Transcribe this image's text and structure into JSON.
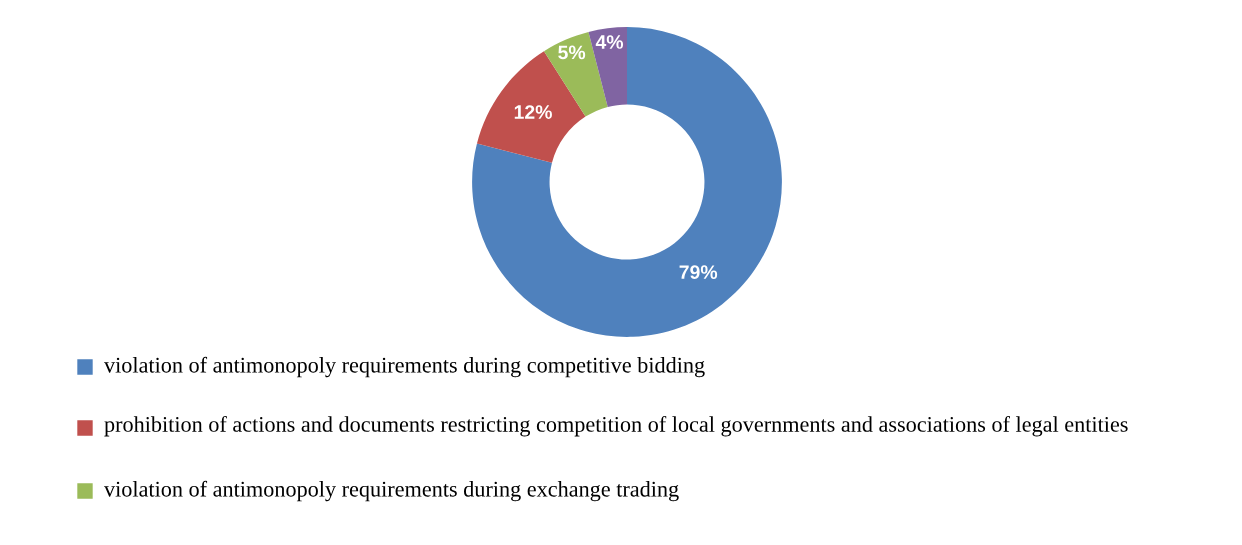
{
  "chart_data": {
    "type": "donut",
    "categories": [
      "violation of antimonopoly requirements during competitive bidding",
      "prohibition of actions and documents restricting competition of local governments and associations of legal entities",
      "violation of antimonopoly requirements during exchange trading",
      null
    ],
    "values": [
      79,
      12,
      5,
      4
    ],
    "colors": [
      "#4f81bd",
      "#c0504d",
      "#9bbb59",
      "#8064a2"
    ],
    "value_labels": [
      "79%",
      "12%",
      "5%",
      "4%"
    ],
    "legend": "bottom"
  }
}
